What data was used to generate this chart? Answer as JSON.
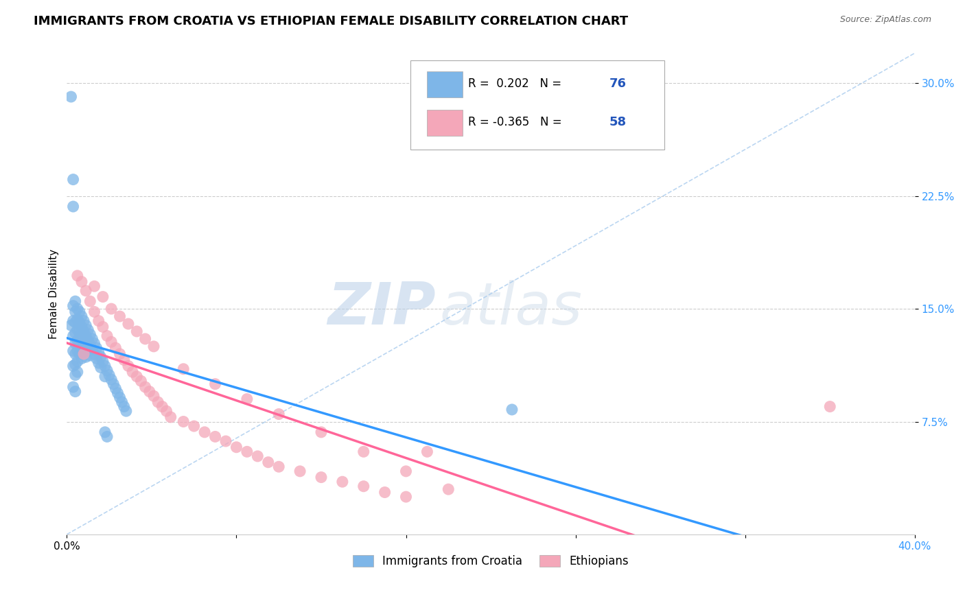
{
  "title": "IMMIGRANTS FROM CROATIA VS ETHIOPIAN FEMALE DISABILITY CORRELATION CHART",
  "source": "Source: ZipAtlas.com",
  "ylabel": "Female Disability",
  "croatia_color": "#7EB6E8",
  "ethiopia_color": "#F4A7B9",
  "croatia_R": 0.202,
  "croatia_N": 76,
  "ethiopia_R": -0.365,
  "ethiopia_N": 58,
  "watermark_zip": "ZIP",
  "watermark_atlas": "atlas",
  "background_color": "#ffffff",
  "grid_color": "#cccccc",
  "title_fontsize": 13,
  "xlim": [
    0.0,
    0.4
  ],
  "ylim": [
    0.0,
    0.32
  ],
  "croatia_x": [
    0.002,
    0.002,
    0.003,
    0.003,
    0.003,
    0.003,
    0.003,
    0.003,
    0.003,
    0.004,
    0.004,
    0.004,
    0.004,
    0.004,
    0.004,
    0.004,
    0.004,
    0.005,
    0.005,
    0.005,
    0.005,
    0.005,
    0.005,
    0.005,
    0.006,
    0.006,
    0.006,
    0.006,
    0.006,
    0.007,
    0.007,
    0.007,
    0.007,
    0.007,
    0.008,
    0.008,
    0.008,
    0.008,
    0.009,
    0.009,
    0.009,
    0.009,
    0.01,
    0.01,
    0.01,
    0.011,
    0.011,
    0.011,
    0.012,
    0.012,
    0.013,
    0.013,
    0.014,
    0.014,
    0.015,
    0.015,
    0.016,
    0.016,
    0.017,
    0.018,
    0.018,
    0.019,
    0.02,
    0.021,
    0.022,
    0.023,
    0.024,
    0.025,
    0.026,
    0.027,
    0.028,
    0.018,
    0.019,
    0.21,
    0.003,
    0.004
  ],
  "croatia_y": [
    0.291,
    0.139,
    0.236,
    0.218,
    0.152,
    0.142,
    0.132,
    0.122,
    0.112,
    0.155,
    0.148,
    0.141,
    0.134,
    0.127,
    0.12,
    0.113,
    0.106,
    0.15,
    0.143,
    0.136,
    0.129,
    0.122,
    0.115,
    0.108,
    0.148,
    0.141,
    0.134,
    0.127,
    0.12,
    0.145,
    0.138,
    0.131,
    0.124,
    0.117,
    0.142,
    0.135,
    0.128,
    0.121,
    0.139,
    0.132,
    0.125,
    0.118,
    0.136,
    0.129,
    0.122,
    0.133,
    0.126,
    0.119,
    0.13,
    0.123,
    0.127,
    0.12,
    0.124,
    0.117,
    0.121,
    0.114,
    0.118,
    0.111,
    0.115,
    0.112,
    0.105,
    0.109,
    0.106,
    0.103,
    0.1,
    0.097,
    0.094,
    0.091,
    0.088,
    0.085,
    0.082,
    0.068,
    0.065,
    0.083,
    0.098,
    0.095
  ],
  "ethiopia_x": [
    0.005,
    0.007,
    0.009,
    0.011,
    0.013,
    0.015,
    0.017,
    0.019,
    0.021,
    0.023,
    0.025,
    0.027,
    0.029,
    0.031,
    0.033,
    0.035,
    0.037,
    0.039,
    0.041,
    0.043,
    0.045,
    0.047,
    0.049,
    0.055,
    0.06,
    0.065,
    0.07,
    0.075,
    0.08,
    0.085,
    0.09,
    0.095,
    0.1,
    0.11,
    0.12,
    0.13,
    0.14,
    0.15,
    0.16,
    0.17,
    0.013,
    0.017,
    0.021,
    0.025,
    0.029,
    0.033,
    0.037,
    0.041,
    0.055,
    0.07,
    0.085,
    0.1,
    0.12,
    0.14,
    0.16,
    0.18,
    0.36,
    0.008
  ],
  "ethiopia_y": [
    0.172,
    0.168,
    0.162,
    0.155,
    0.148,
    0.142,
    0.138,
    0.132,
    0.128,
    0.124,
    0.12,
    0.116,
    0.112,
    0.108,
    0.105,
    0.102,
    0.098,
    0.095,
    0.092,
    0.088,
    0.085,
    0.082,
    0.078,
    0.075,
    0.072,
    0.068,
    0.065,
    0.062,
    0.058,
    0.055,
    0.052,
    0.048,
    0.045,
    0.042,
    0.038,
    0.035,
    0.032,
    0.028,
    0.025,
    0.055,
    0.165,
    0.158,
    0.15,
    0.145,
    0.14,
    0.135,
    0.13,
    0.125,
    0.11,
    0.1,
    0.09,
    0.08,
    0.068,
    0.055,
    0.042,
    0.03,
    0.085,
    0.12
  ]
}
